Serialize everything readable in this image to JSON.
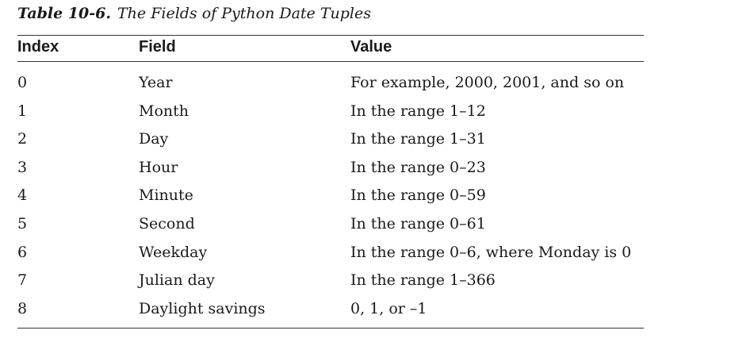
{
  "caption": {
    "label": "Table 10-6.",
    "title": "The Fields of Python Date Tuples"
  },
  "table": {
    "headers": [
      "Index",
      "Field",
      "Value"
    ],
    "rows": [
      {
        "index": "0",
        "field": "Year",
        "value": "For example, 2000, 2001, and so on"
      },
      {
        "index": "1",
        "field": "Month",
        "value": "In the range 1–12"
      },
      {
        "index": "2",
        "field": "Day",
        "value": "In the range 1–31"
      },
      {
        "index": "3",
        "field": "Hour",
        "value": "In the range 0–23"
      },
      {
        "index": "4",
        "field": "Minute",
        "value": "In the range 0–59"
      },
      {
        "index": "5",
        "field": "Second",
        "value": "In the range 0–61"
      },
      {
        "index": "6",
        "field": "Weekday",
        "value": "In the range 0–6, where Monday is 0"
      },
      {
        "index": "7",
        "field": "Julian day",
        "value": "In the range 1–366"
      },
      {
        "index": "8",
        "field": "Daylight savings",
        "value": "0, 1, or –1"
      }
    ]
  }
}
